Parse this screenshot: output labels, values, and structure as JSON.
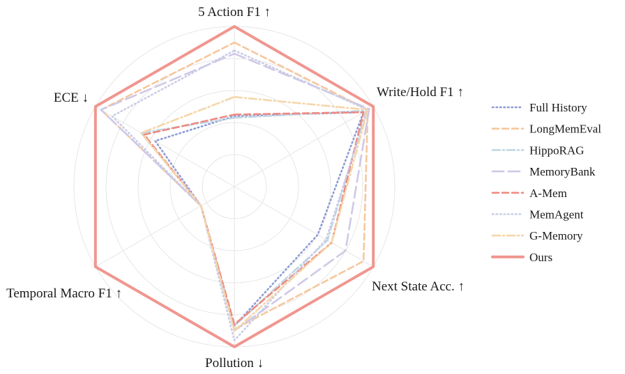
{
  "chart_data": {
    "type": "radar",
    "axes": [
      {
        "label": "5 Action F1 ↑"
      },
      {
        "label": "Write/Hold F1 ↑"
      },
      {
        "label": "Next State Acc. ↑"
      },
      {
        "label": "Pollution ↓"
      },
      {
        "label": "Temporal Macro F1 ↑"
      },
      {
        "label": "ECE ↓"
      }
    ],
    "range": [
      0,
      1
    ],
    "grid_rings": 5,
    "grid": true,
    "legend_position": "right",
    "series": [
      {
        "name": "Full History",
        "color": "#8e9bd4",
        "dash": "dotted",
        "values": [
          0.44,
          0.93,
          0.6,
          0.87,
          0.24,
          0.57
        ]
      },
      {
        "name": "LongMemEval",
        "color": "#f6c79c",
        "dash": "dashed",
        "values": [
          0.9,
          0.96,
          0.93,
          0.89,
          0.24,
          0.96
        ]
      },
      {
        "name": "HippoRAG",
        "color": "#c0d6e4",
        "dash": "dashdot",
        "values": [
          0.43,
          0.95,
          0.67,
          0.87,
          0.24,
          0.67
        ]
      },
      {
        "name": "MemoryBank",
        "color": "#cfc8e6",
        "dash": "longdash",
        "values": [
          0.83,
          0.97,
          0.8,
          0.9,
          0.24,
          0.96
        ]
      },
      {
        "name": "A-Mem",
        "color": "#ee8a82",
        "dash": "dashed",
        "values": [
          0.45,
          0.93,
          0.7,
          0.86,
          0.24,
          0.65
        ]
      },
      {
        "name": "MemAgent",
        "color": "#c9cde6",
        "dash": "dotted",
        "values": [
          0.85,
          0.96,
          0.66,
          0.96,
          0.24,
          0.88
        ]
      },
      {
        "name": "G-Memory",
        "color": "#f5d6aa",
        "dash": "dashdot",
        "values": [
          0.56,
          0.96,
          0.7,
          0.9,
          0.24,
          0.67
        ]
      },
      {
        "name": "Ours",
        "color": "#f0968f",
        "dash": "solid",
        "values": [
          1.0,
          1.0,
          1.0,
          1.0,
          1.0,
          1.0
        ]
      }
    ]
  }
}
